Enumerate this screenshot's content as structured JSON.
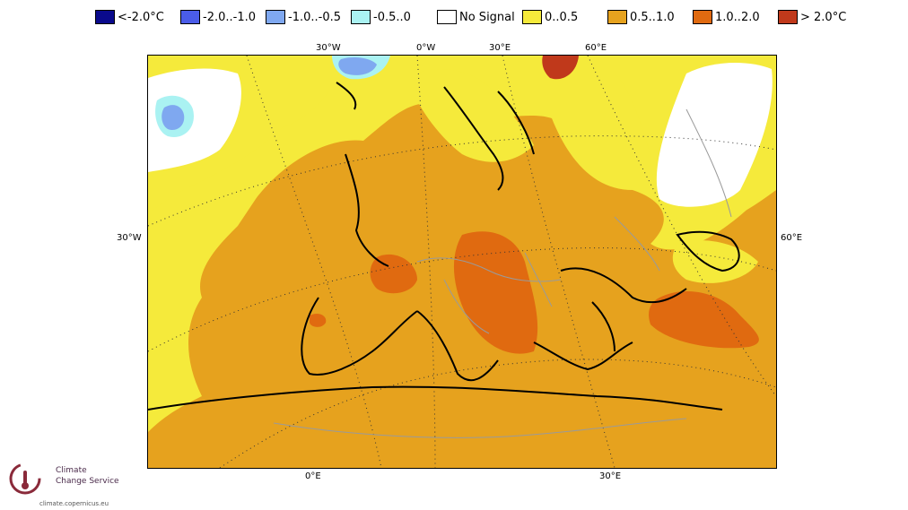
{
  "legend": [
    {
      "label": "<-2.0°C",
      "color": "#0a0a8c"
    },
    {
      "label": "-2.0..-1.0",
      "color": "#4a5ce8"
    },
    {
      "label": "-1.0..-0.5",
      "color": "#7fa8f0"
    },
    {
      "label": "-0.5..0",
      "color": "#aaf2f2"
    },
    {
      "label": "No Signal",
      "color": "#ffffff"
    },
    {
      "label": "0..0.5",
      "color": "#f5ea3b"
    },
    {
      "label": "0.5..1.0",
      "color": "#e6a21e"
    },
    {
      "label": "1.0..2.0",
      "color": "#e06a10"
    },
    {
      "label": "> 2.0°C",
      "color": "#c0391b"
    }
  ],
  "coords": {
    "top": [
      "30°W",
      "0°W",
      "30°E",
      "60°E"
    ],
    "left": "30°W",
    "right": "60°E",
    "bottom": [
      "0°E",
      "30°E"
    ]
  },
  "logo": {
    "line1": "Climate",
    "line2": "Change Service",
    "url": "climate.copernicus.eu"
  }
}
